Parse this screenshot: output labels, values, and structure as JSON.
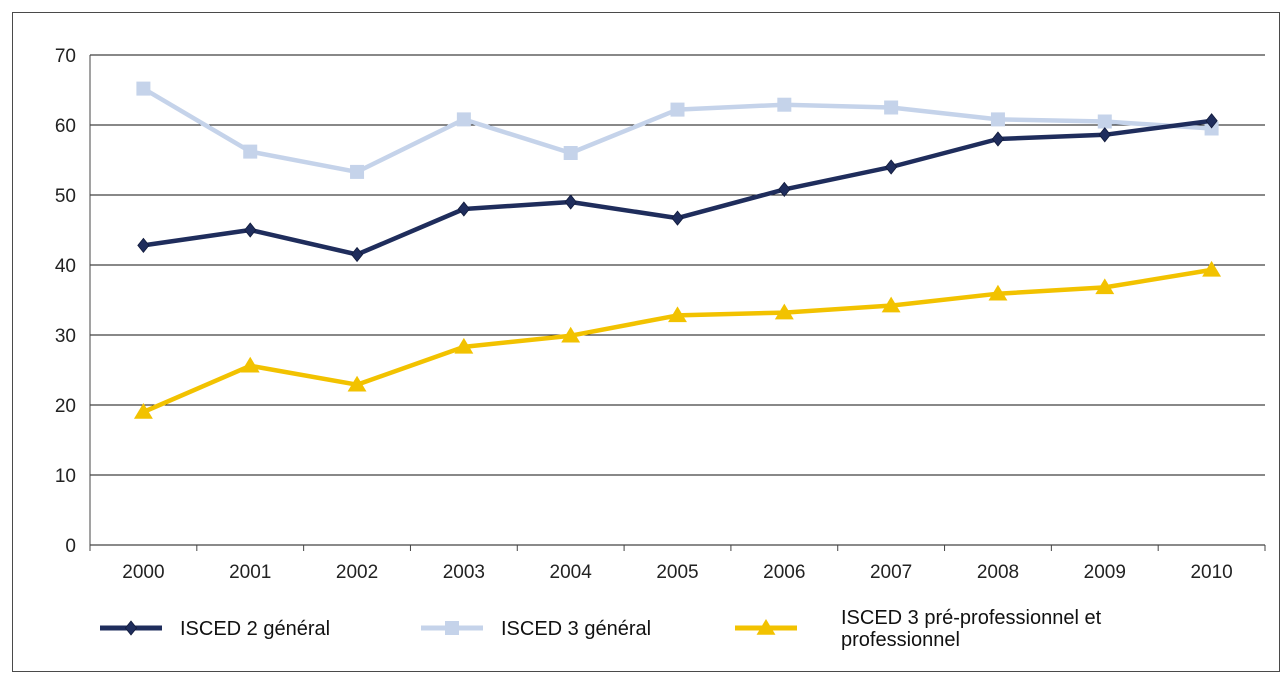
{
  "chart_data": {
    "type": "line",
    "title": "",
    "xlabel": "",
    "ylabel": "",
    "x": [
      "2000",
      "2001",
      "2002",
      "2003",
      "2004",
      "2005",
      "2006",
      "2007",
      "2008",
      "2009",
      "2010"
    ],
    "ylim": [
      0,
      70
    ],
    "yticks": [
      "0",
      "10",
      "20",
      "30",
      "40",
      "50",
      "60",
      "70"
    ],
    "grid": true,
    "legend_position": "bottom",
    "series": [
      {
        "name": "ISCED 2 général",
        "color": "#1f2d5c",
        "marker": "diamond",
        "values": [
          42.8,
          45.0,
          41.5,
          48.0,
          49.0,
          46.7,
          50.8,
          54.0,
          58.0,
          58.6,
          60.6
        ]
      },
      {
        "name": "ISCED 3 général",
        "color": "#c5d3ea",
        "marker": "square",
        "values": [
          65.2,
          56.2,
          53.3,
          60.8,
          56.0,
          62.2,
          62.9,
          62.5,
          60.8,
          60.5,
          59.5
        ]
      },
      {
        "name_lines": [
          "ISCED 3 pré-professionnel et",
          "professionnel"
        ],
        "color": "#f2c200",
        "marker": "triangle",
        "values": [
          19.0,
          25.6,
          22.9,
          28.3,
          29.9,
          32.8,
          33.2,
          34.2,
          35.9,
          36.8,
          39.3
        ]
      }
    ]
  }
}
